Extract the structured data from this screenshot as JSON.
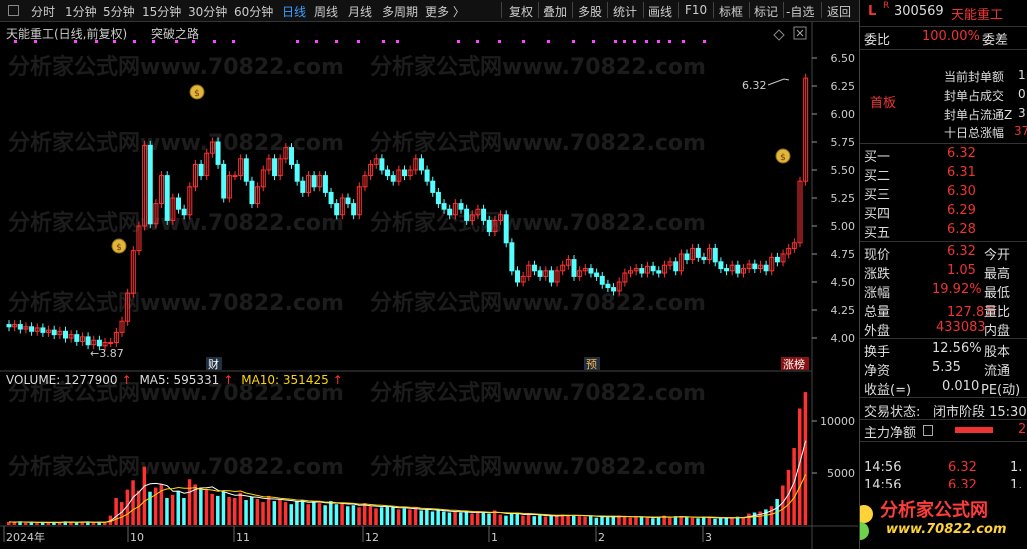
{
  "toolbar": {
    "periods": [
      "分时",
      "1分钟",
      "5分钟",
      "15分钟",
      "30分钟",
      "60分钟",
      "日线",
      "周线",
      "月线",
      "多周期",
      "更多 〉"
    ],
    "active_period": "日线",
    "tools": [
      "复权",
      "叠加",
      "多股",
      "统计",
      "画线",
      "F10",
      "标框",
      "标记",
      "-自选",
      "返回"
    ]
  },
  "chart": {
    "title": "天能重工(日线,前复权)",
    "indicator": "突破之路",
    "price_axis": [
      "6.50",
      "6.25",
      "6.00",
      "5.75",
      "5.50",
      "5.25",
      "5.00",
      "4.75",
      "4.50",
      "4.25",
      "4.00"
    ],
    "volume_axis": [
      "10000",
      "5000",
      "0"
    ],
    "x_axis": [
      "2024年",
      "10",
      "11",
      "12",
      "1",
      "2",
      "3"
    ],
    "high_label": "6.32",
    "low_label": "3.87",
    "event_labels": [
      "财",
      "预",
      "涨榜"
    ],
    "watermark": "分析家公式网www.70822.com",
    "volume_legend": {
      "volume": "VOLUME: 1277900",
      "ma5": "MA5: 595331",
      "ma10": "MA10: 351425"
    },
    "colors": {
      "up": "#ff3232",
      "down": "#54ffff",
      "ma5": "#ffffff",
      "ma10": "#ffd700",
      "marker": "#ff44ff"
    }
  },
  "panel": {
    "flag": "L",
    "flag_r": "R",
    "code": "300569",
    "name": "天能重工",
    "weibi_label": "委比",
    "weibi_value": "100.00%",
    "weicha_label": "委差",
    "shouban": "首板",
    "seal_items": [
      "当前封单额",
      "封单占成交",
      "封单占流通Z",
      "十日总涨幅"
    ],
    "seal_values": [
      "1.",
      "0.",
      "3",
      "37"
    ],
    "bids": [
      {
        "label": "买一",
        "price": "6.32"
      },
      {
        "label": "买二",
        "price": "6.31"
      },
      {
        "label": "买三",
        "price": "6.30"
      },
      {
        "label": "买四",
        "price": "6.29"
      },
      {
        "label": "买五",
        "price": "6.28"
      }
    ],
    "quote": [
      {
        "l1": "现价",
        "v1": "6.32",
        "l2": "今开"
      },
      {
        "l1": "涨跌",
        "v1": "1.05",
        "l2": "最高"
      },
      {
        "l1": "涨幅",
        "v1": "19.92%",
        "l2": "最低"
      },
      {
        "l1": "总量",
        "v1": "127.8万",
        "l2": "量比"
      },
      {
        "l1": "外盘",
        "v1": "433083",
        "l2": "内盘"
      }
    ],
    "stats": [
      {
        "l1": "换手",
        "v1": "12.56%",
        "l2": "股本"
      },
      {
        "l1": "净资",
        "v1": "5.35",
        "l2": "流通"
      },
      {
        "l1": "收益(=)",
        "v1": "0.010",
        "l2": "PE(动)"
      }
    ],
    "trade_status_label": "交易状态:",
    "trade_status": "闭市阶段 15:30",
    "main_flow_label": "主力净额",
    "main_flow_value": "2",
    "ticks": [
      {
        "time": "14:56",
        "price": "6.32",
        "vol": "1."
      },
      {
        "time": "14:56",
        "price": "6.32",
        "vol": "1."
      },
      {
        "time": "14:56",
        "price": "6.32",
        "vol": "5."
      }
    ],
    "logo_text": "分析家公式网",
    "logo_url": "www.70822.com"
  }
}
